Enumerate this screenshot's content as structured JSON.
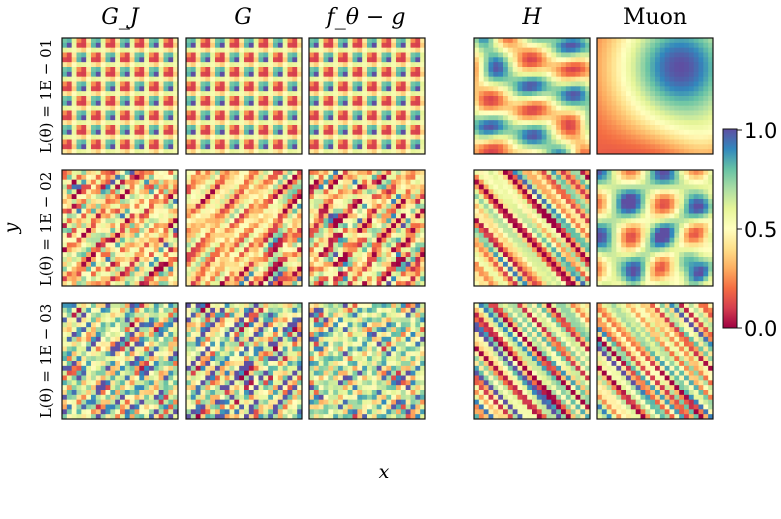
{
  "chart_data": {
    "type": "heatmap",
    "title": "",
    "column_titles": [
      "G_J",
      "G",
      "f_θ − g",
      "H",
      "Muon"
    ],
    "row_labels": [
      "L(θ) = 1E − 01",
      "L(θ) = 1E − 02",
      "L(θ) = 1E − 03"
    ],
    "xlabel": "x",
    "ylabel": "y",
    "colorbar": {
      "colormap": "Spectral",
      "range": [
        0.0,
        1.0
      ],
      "ticks": [
        "0.0",
        "0.5",
        "1.0"
      ],
      "stops": [
        "#9e0142",
        "#d53e4f",
        "#f46d43",
        "#fdae61",
        "#fee08b",
        "#ffffbf",
        "#e6f598",
        "#abdda4",
        "#66c2a5",
        "#3288bd",
        "#5e4fa2"
      ]
    },
    "grid": false,
    "panels": [
      [
        {
          "column": "G_J",
          "pattern": "checkerboard",
          "mean": 0.5
        },
        {
          "column": "G",
          "pattern": "checkerboard",
          "mean": 0.5
        },
        {
          "column": "f_θ − g",
          "pattern": "checkerboard",
          "mean": 0.5
        },
        {
          "column": "H",
          "pattern": "diagonal-waves",
          "mean": 0.55
        },
        {
          "column": "Muon",
          "pattern": "smooth-blob",
          "mean": 0.45
        }
      ],
      [
        {
          "column": "G_J",
          "pattern": "speckle",
          "mean": 0.42
        },
        {
          "column": "G",
          "pattern": "speckle",
          "mean": 0.38
        },
        {
          "column": "f_θ − g",
          "pattern": "speckle",
          "mean": 0.4
        },
        {
          "column": "H",
          "pattern": "diagonal-speckle",
          "mean": 0.42
        },
        {
          "column": "Muon",
          "pattern": "grid-waves",
          "mean": 0.6
        }
      ],
      [
        {
          "column": "G_J",
          "pattern": "speckle",
          "mean": 0.62
        },
        {
          "column": "G",
          "pattern": "speckle",
          "mean": 0.62
        },
        {
          "column": "f_θ − g",
          "pattern": "speckle",
          "mean": 0.62
        },
        {
          "column": "H",
          "pattern": "diagonal-speckle",
          "mean": 0.5
        },
        {
          "column": "Muon",
          "pattern": "diagonal-speckle",
          "mean": 0.48
        }
      ]
    ]
  }
}
